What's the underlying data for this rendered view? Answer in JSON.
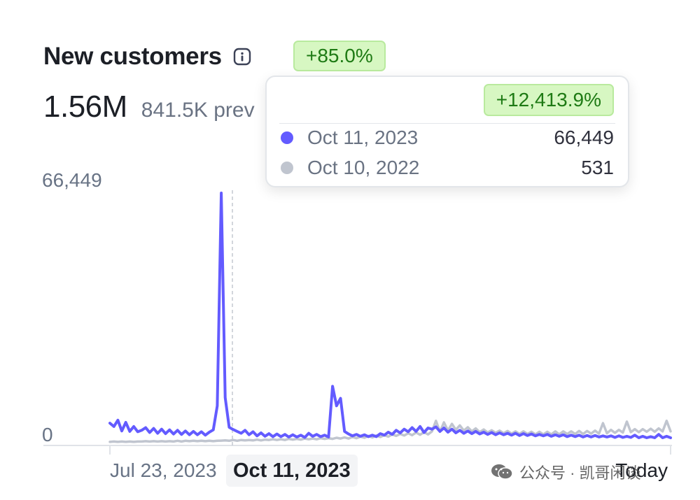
{
  "header": {
    "title": "New customers",
    "change_badge": "+85.0%",
    "total": "1.56M",
    "previous": "841.5K prev"
  },
  "colors": {
    "current_series": "#635bff",
    "previous_series": "#c0c5cf",
    "badge_bg": "#d7f7c2",
    "badge_text": "#1e7a14"
  },
  "tooltip": {
    "change": "+12,413.9%",
    "rows": [
      {
        "date": "Oct 11, 2023",
        "value": "66,449",
        "color": "#635bff"
      },
      {
        "date": "Oct 10, 2022",
        "value": "531",
        "color": "#c0c5cf"
      }
    ]
  },
  "axis": {
    "y_max_label": "66,449",
    "y_min_label": "0",
    "x_start_label": "Jul 23, 2023",
    "x_hover_label": "Oct 11, 2023",
    "x_end_label": "Today"
  },
  "watermark": {
    "text": "公众号 · 凯哥闲谈",
    "icon": "wechat-icon"
  },
  "chart_data": {
    "type": "line",
    "ylim": [
      0,
      66449
    ],
    "x_start": "Jul 23, 2023",
    "x_end": "Today",
    "hover_date": "Oct 11, 2023",
    "series": [
      {
        "color": "#635bff",
        "values": [
          5200,
          4300,
          6000,
          3100,
          5400,
          3000,
          4300,
          2900,
          3300,
          4000,
          2700,
          3800,
          2500,
          3600,
          2400,
          3400,
          2300,
          3300,
          2200,
          3100,
          2100,
          3000,
          2100,
          2900,
          2000,
          2800,
          3400,
          9800,
          66449,
          12000,
          4100,
          3500,
          3000,
          2500,
          3300,
          2100,
          2900,
          1800,
          2600,
          1700,
          2400,
          1600,
          2300,
          1600,
          2200,
          1500,
          2100,
          1500,
          2000,
          1400,
          2500,
          1700,
          2200,
          1600,
          2000,
          1500,
          15000,
          9800,
          11800,
          3000,
          2300,
          1800,
          2200,
          1700,
          2100,
          1600,
          2000,
          1600,
          2400,
          2000,
          2800,
          2200,
          3300,
          2600,
          3600,
          2900,
          4000,
          3000,
          4300,
          2700,
          3900,
          3600,
          4200,
          3000,
          3900,
          2800,
          3600,
          2600,
          3300,
          2500,
          3100,
          2400,
          3000,
          2300,
          2800,
          2200,
          2700,
          2100,
          2600,
          2100,
          2500,
          2000,
          2500,
          1900,
          2400,
          1900,
          2300,
          1800,
          2200,
          1800,
          2200,
          1700,
          2100,
          1700,
          2100,
          1600,
          2000,
          1600,
          2000,
          1500,
          1900,
          1500,
          1900,
          1500,
          1800,
          1500,
          1800,
          1400,
          1800,
          1400,
          1700,
          1400,
          2000,
          1300,
          1700,
          1300,
          1600,
          1300,
          2200,
          1300,
          1700,
          1300
        ]
      },
      {
        "color": "#c0c5cf",
        "values": [
          200,
          300,
          200,
          300,
          200,
          300,
          200,
          300,
          300,
          400,
          300,
          400,
          300,
          400,
          300,
          400,
          300,
          500,
          300,
          500,
          400,
          500,
          400,
          500,
          400,
          500,
          400,
          500,
          531,
          600,
          500,
          700,
          500,
          700,
          600,
          700,
          600,
          800,
          600,
          800,
          700,
          900,
          700,
          900,
          700,
          1000,
          800,
          1000,
          800,
          1100,
          900,
          1100,
          900,
          1200,
          1000,
          1200,
          1000,
          1300,
          1100,
          1400,
          1100,
          1500,
          1200,
          1600,
          1300,
          1800,
          1400,
          1900,
          1500,
          2000,
          1600,
          2200,
          1800,
          2300,
          1900,
          2500,
          2000,
          2700,
          2100,
          2800,
          2200,
          3000,
          5800,
          2900,
          5400,
          3200,
          5000,
          3400,
          4600,
          3200,
          4100,
          3000,
          3800,
          2800,
          3500,
          2700,
          3300,
          2600,
          3200,
          2500,
          3100,
          2400,
          3000,
          2300,
          3000,
          2300,
          2900,
          2200,
          2900,
          2200,
          2900,
          2200,
          3000,
          2200,
          3000,
          2300,
          3000,
          2300,
          3100,
          2300,
          3100,
          2400,
          3200,
          2400,
          5200,
          2500,
          3400,
          2600,
          3400,
          2700,
          5600,
          2800,
          3600,
          2800,
          3600,
          2900,
          3700,
          2900,
          3800,
          3000,
          5800,
          3000
        ]
      }
    ]
  }
}
